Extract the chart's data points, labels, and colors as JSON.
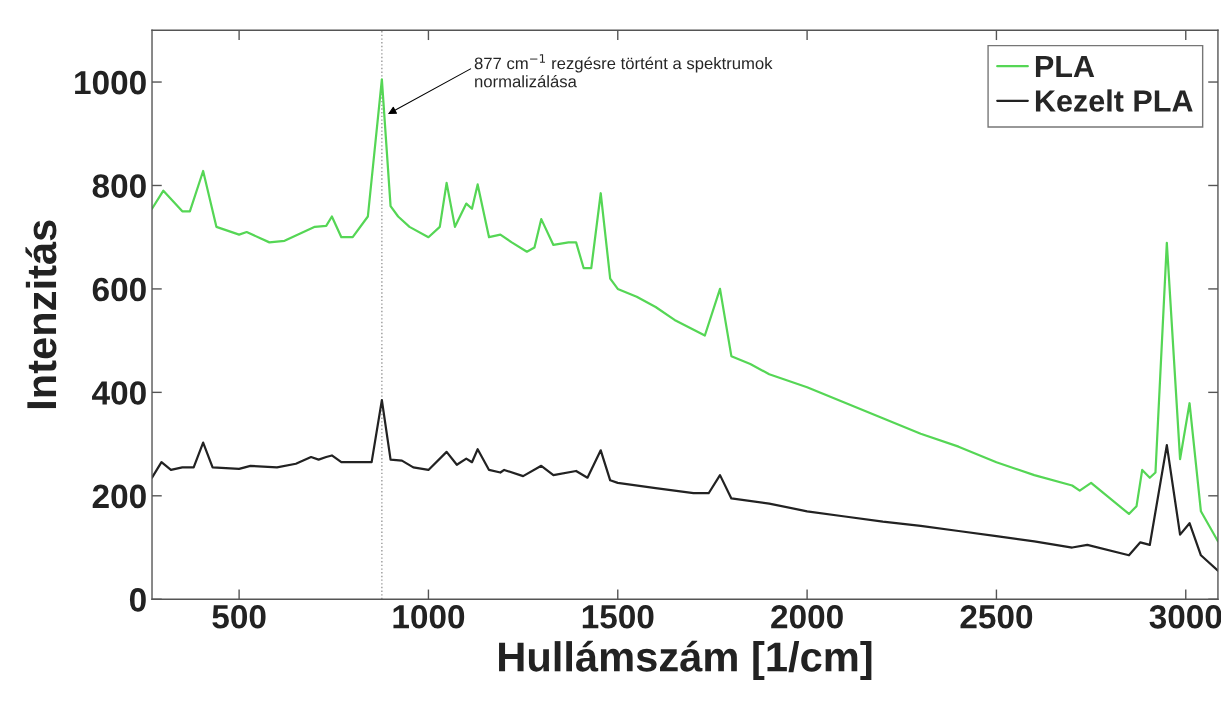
{
  "chart_data": {
    "type": "line",
    "xlabel": "Hullámszám [1/cm]",
    "ylabel": "Intenzitás",
    "xlim": [
      270,
      3085
    ],
    "ylim": [
      0,
      1100
    ],
    "xticks": [
      500,
      1000,
      1500,
      2000,
      2500,
      3000
    ],
    "yticks": [
      0,
      200,
      400,
      600,
      800,
      1000
    ],
    "grid": false,
    "legend": "top right",
    "line_style": "solid",
    "marker": "none",
    "ref_lines": [
      {
        "axis": "x",
        "value": 877,
        "color": "#999999",
        "line_style": "dotted"
      }
    ],
    "annotations": [
      {
        "text": "877 cm$^{−1}$ rezgésre történt a spektrumok\nnormalizálása",
        "x": 893,
        "y": 938
      }
    ],
    "series": [
      {
        "name": "PLA",
        "color": "#55d655",
        "x": [
          270,
          300,
          350,
          370,
          405,
          440,
          500,
          520,
          580,
          620,
          700,
          730,
          745,
          770,
          800,
          840,
          877,
          900,
          920,
          950,
          1000,
          1030,
          1048,
          1070,
          1100,
          1115,
          1130,
          1160,
          1190,
          1220,
          1260,
          1280,
          1298,
          1330,
          1370,
          1390,
          1410,
          1430,
          1455,
          1480,
          1500,
          1550,
          1600,
          1650,
          1730,
          1770,
          1800,
          1850,
          1900,
          2000,
          2100,
          2200,
          2300,
          2400,
          2500,
          2600,
          2700,
          2720,
          2750,
          2850,
          2870,
          2885,
          2905,
          2920,
          2950,
          2985,
          3010,
          3040,
          3085
        ],
        "values": [
          755,
          790,
          750,
          750,
          828,
          720,
          705,
          710,
          690,
          693,
          720,
          722,
          740,
          700,
          700,
          740,
          1005,
          760,
          740,
          720,
          700,
          720,
          805,
          720,
          765,
          755,
          802,
          700,
          705,
          690,
          672,
          680,
          735,
          685,
          690,
          690,
          640,
          640,
          785,
          620,
          600,
          585,
          565,
          540,
          510,
          600,
          470,
          455,
          435,
          410,
          380,
          350,
          320,
          295,
          265,
          240,
          220,
          210,
          225,
          165,
          180,
          250,
          235,
          245,
          689,
          271,
          379,
          170,
          112
        ]
      },
      {
        "name": "Kezelt PLA",
        "color": "#222222",
        "x": [
          270,
          295,
          320,
          350,
          380,
          405,
          430,
          500,
          530,
          600,
          650,
          690,
          710,
          730,
          745,
          770,
          850,
          877,
          900,
          930,
          960,
          1000,
          1048,
          1075,
          1100,
          1115,
          1130,
          1160,
          1190,
          1200,
          1250,
          1298,
          1330,
          1390,
          1420,
          1455,
          1480,
          1500,
          1600,
          1700,
          1740,
          1770,
          1800,
          1900,
          2000,
          2100,
          2200,
          2300,
          2400,
          2500,
          2600,
          2700,
          2740,
          2850,
          2880,
          2905,
          2950,
          2985,
          3010,
          3040,
          3085
        ],
        "values": [
          235,
          265,
          250,
          255,
          255,
          303,
          255,
          252,
          258,
          255,
          262,
          275,
          270,
          275,
          278,
          265,
          265,
          385,
          270,
          268,
          255,
          250,
          285,
          260,
          272,
          265,
          290,
          250,
          245,
          250,
          238,
          258,
          240,
          248,
          235,
          288,
          230,
          225,
          215,
          205,
          205,
          240,
          195,
          185,
          170,
          160,
          150,
          142,
          132,
          122,
          112,
          100,
          105,
          85,
          110,
          105,
          298,
          125,
          147,
          85,
          55
        ]
      }
    ]
  }
}
